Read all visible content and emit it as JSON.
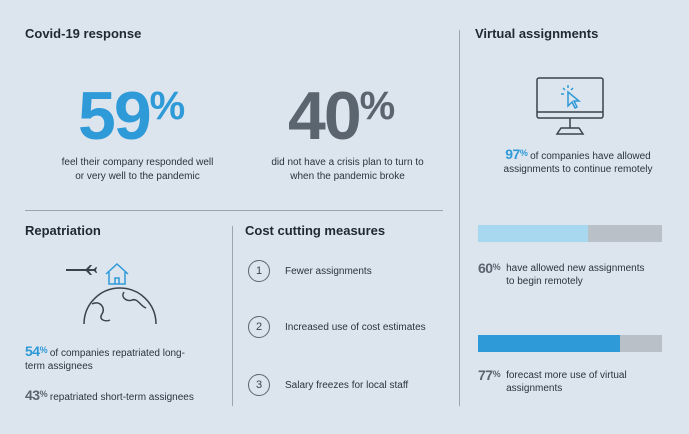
{
  "covid": {
    "title": "Covid-19 response",
    "stat1": {
      "num": "59",
      "pct": "%",
      "caption1": "feel their company responded well",
      "caption2": "or very well to the pandemic"
    },
    "stat2": {
      "num": "40",
      "pct": "%",
      "caption1": "did not have a crisis plan to turn to",
      "caption2": "when the pandemic broke"
    }
  },
  "repatriation": {
    "title": "Repatriation",
    "item1": {
      "num": "54",
      "pct": "%",
      "text1": "of companies repatriated long-",
      "text2": "term assignees"
    },
    "item2": {
      "num": "43",
      "pct": "%",
      "text": "repatriated short-term assignees"
    }
  },
  "cost": {
    "title": "Cost cutting measures",
    "items": [
      {
        "n": "1",
        "label": "Fewer assignments"
      },
      {
        "n": "2",
        "label": "Increased use of cost estimates"
      },
      {
        "n": "3",
        "label": "Salary freezes for local staff"
      }
    ]
  },
  "virtual": {
    "title": "Virtual assignments",
    "stat1": {
      "num": "97",
      "pct": "%",
      "text1": "of companies have allowed",
      "text2": "assignments to continue remotely"
    },
    "bar1": {
      "value": 0.6,
      "color": "#a8d8f0",
      "num": "60",
      "pct": "%",
      "text1": "have allowed new assignments",
      "text2": "to begin remotely"
    },
    "bar2": {
      "value": 0.77,
      "color": "#2e9ad8",
      "num": "77",
      "pct": "%",
      "text1": "forecast more use of virtual",
      "text2": "assignments"
    }
  },
  "colors": {
    "accent": "#2e9ad8",
    "dark": "#5a6570",
    "background": "#dce4ed"
  },
  "icons": [
    "airplane-icon",
    "house-icon",
    "globe-icon",
    "monitor-icon",
    "cursor-click-icon"
  ]
}
